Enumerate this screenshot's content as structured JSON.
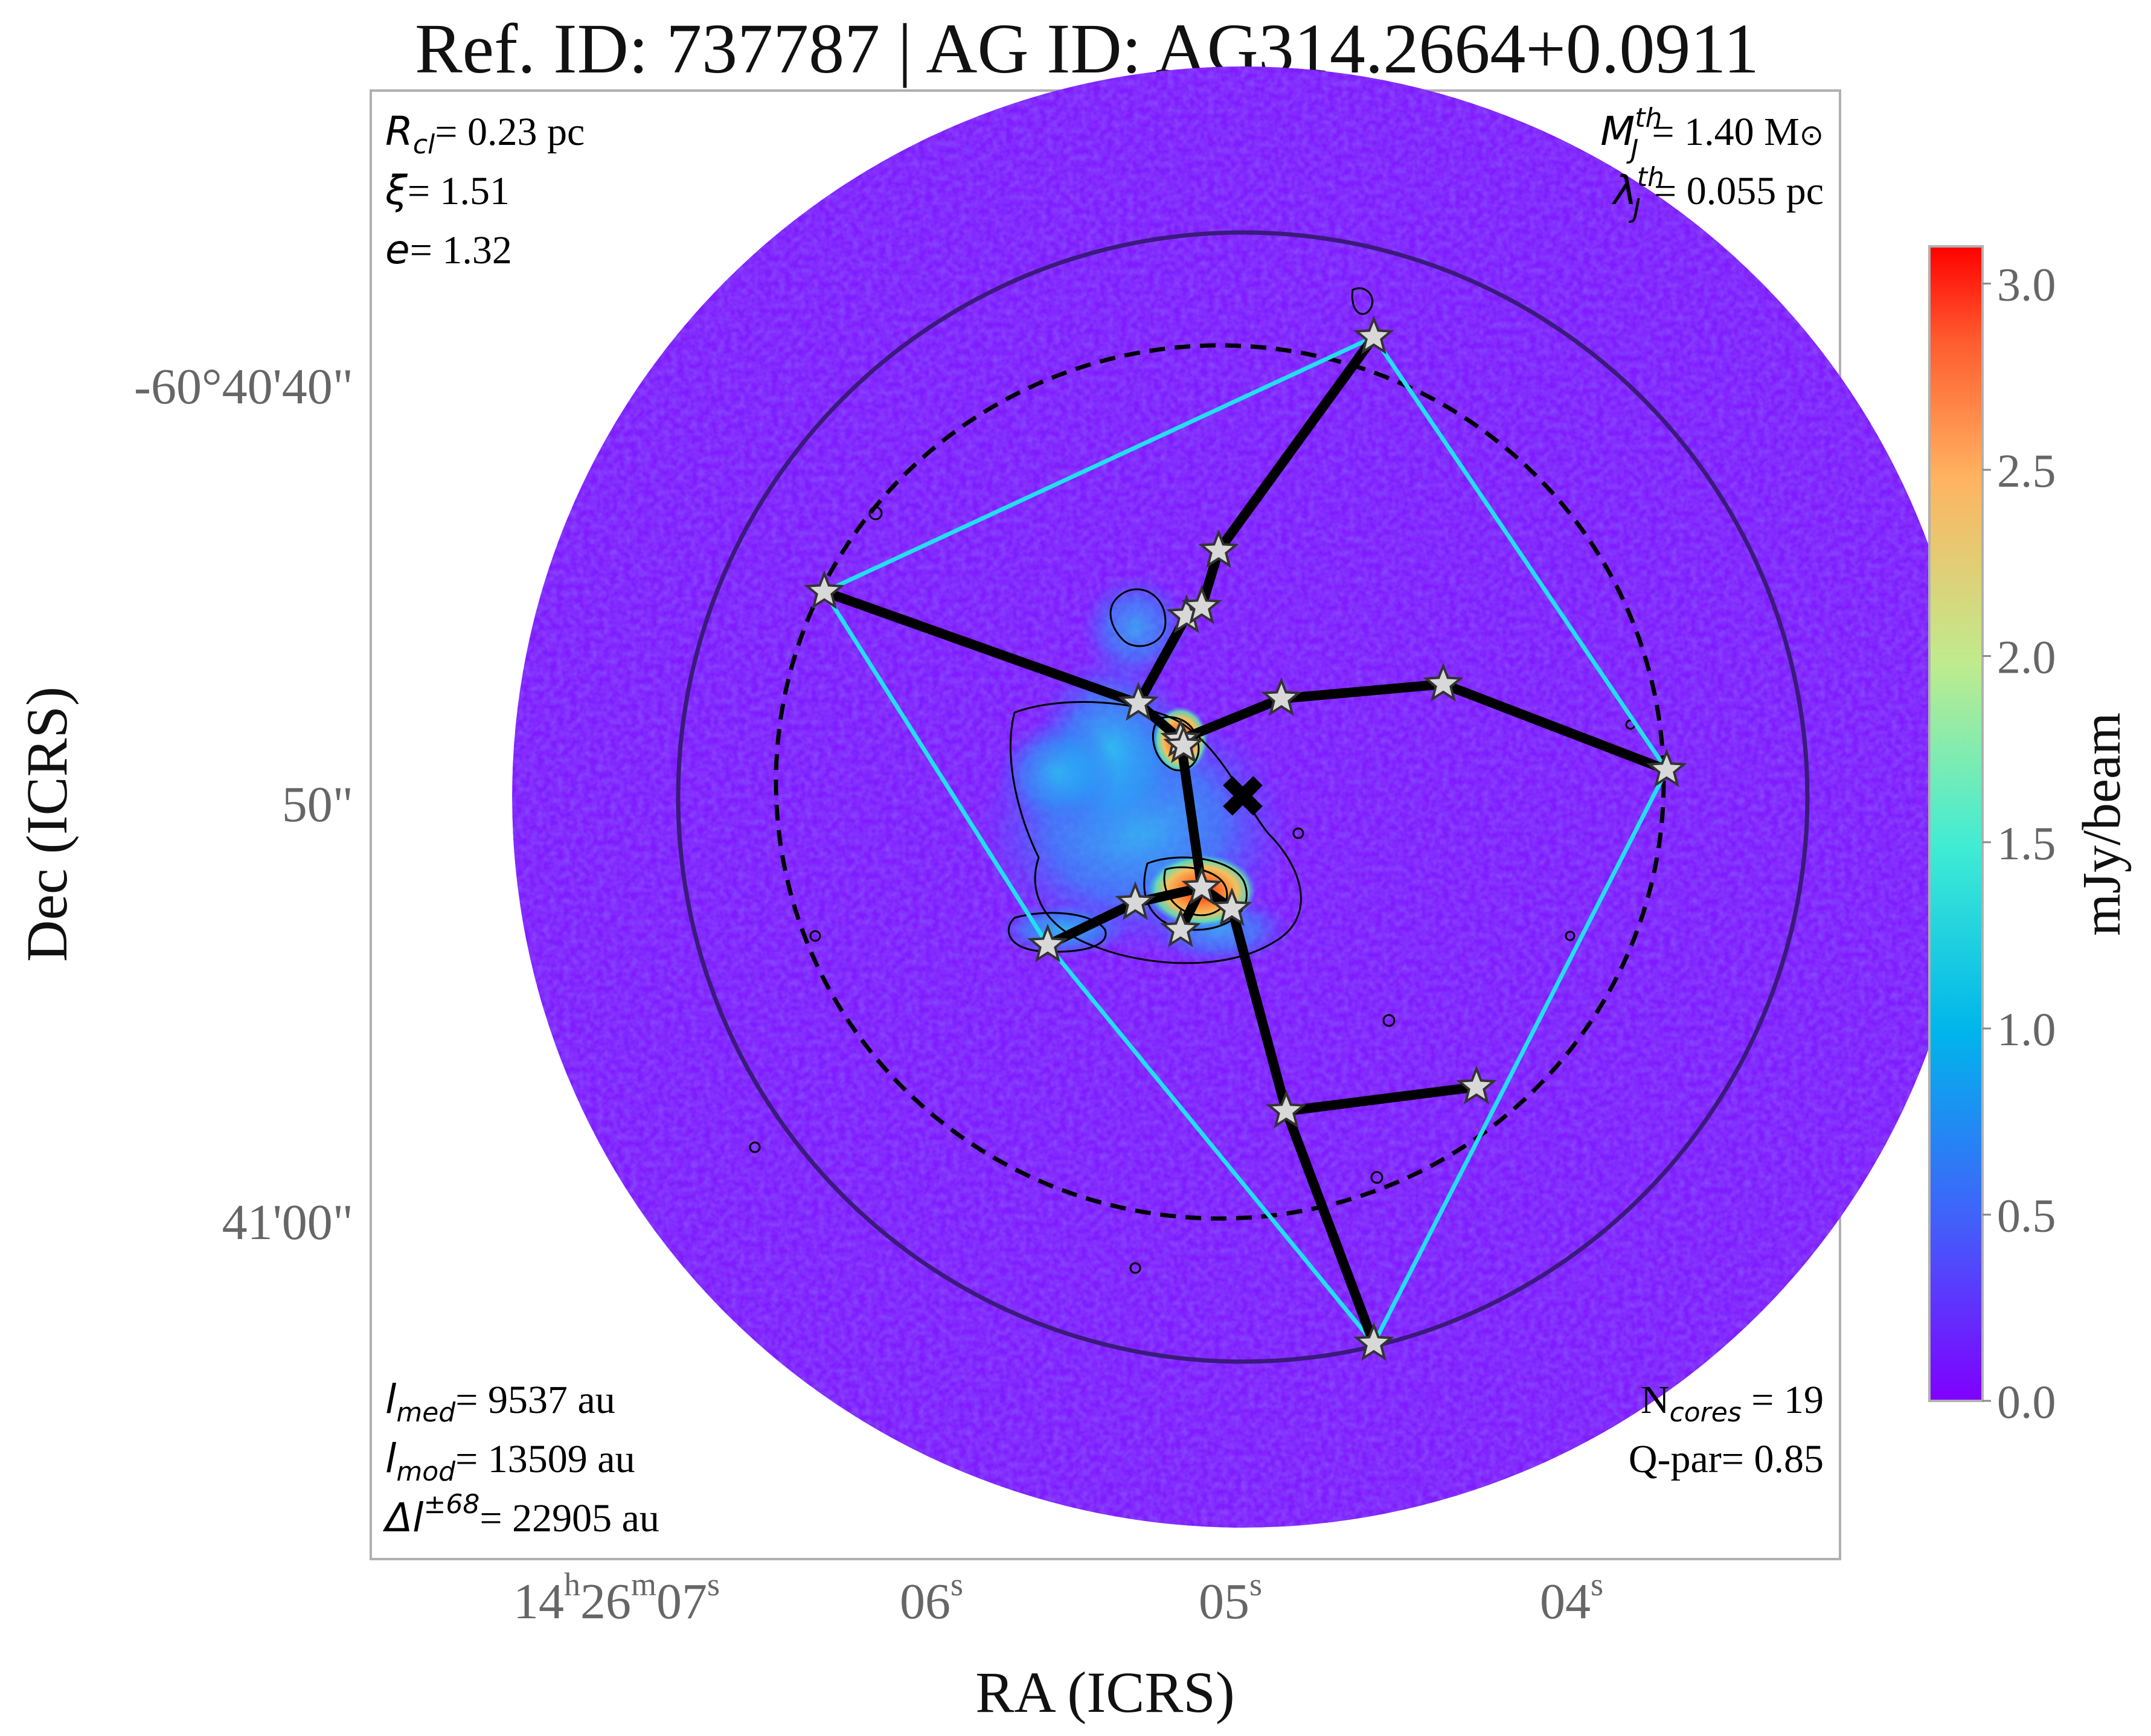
{
  "chart_data": {
    "type": "image",
    "title": "Ref. ID: 737787 | AG ID: AG314.2664+0.0911",
    "xlabel": "RA (ICRS)",
    "ylabel": "Dec (ICRS)",
    "x_ticks": [
      {
        "label_parts": {
          "h": "14",
          "h_unit": "h",
          "m": "26",
          "m_unit": "m",
          "s": "07",
          "s_unit": "s"
        }
      },
      {
        "label": "06",
        "unit": "s"
      },
      {
        "label": "05",
        "unit": "s"
      },
      {
        "label": "04",
        "unit": "s"
      }
    ],
    "y_ticks": [
      {
        "label": "-60°40'40\""
      },
      {
        "label": "50\""
      },
      {
        "label": "41'00\""
      }
    ],
    "colorbar": {
      "label": "mJy/beam",
      "ticks": [
        "3.0",
        "2.5",
        "2.0",
        "1.5",
        "1.0",
        "0.5",
        "0.0"
      ],
      "vmin": 0.0,
      "vmax": 3.1,
      "colormap": "rainbow"
    },
    "annotations": {
      "top_left": [
        {
          "sym": "R",
          "sub": "cl",
          "text": "= 0.23 pc"
        },
        {
          "sym": "ξ",
          "sub": "",
          "text": "= 1.51"
        },
        {
          "sym": "e",
          "sub": "",
          "text": "= 1.32"
        }
      ],
      "top_right": [
        {
          "sym": "M",
          "sup": "th",
          "sub": "J",
          "text": "= 1.40 M",
          "suffix": "⊙"
        },
        {
          "sym": "λ",
          "sup": "th",
          "sub": "J",
          "text": "= 0.055 pc"
        }
      ],
      "bottom_left": [
        {
          "sym": "l",
          "sub": "med",
          "text": "= 9537 au"
        },
        {
          "sym": "l",
          "sub": "mod",
          "text": "= 13509 au"
        },
        {
          "sym": "Δl",
          "sup": "±68",
          "text": "= 22905 au"
        }
      ],
      "bottom_right": [
        {
          "pre": "N",
          "sub": "cores",
          "text": " = 19"
        },
        {
          "pre": "Q-par",
          "text": "= 0.85"
        }
      ]
    },
    "n_cores": 19,
    "q_par": 0.85,
    "colors": {
      "map_background": "#7f1cfe",
      "hull": "#22e0ee",
      "mst": "#000000",
      "outer_circle": "#3a1a7a",
      "star_fill": "#d8d8d8"
    }
  }
}
